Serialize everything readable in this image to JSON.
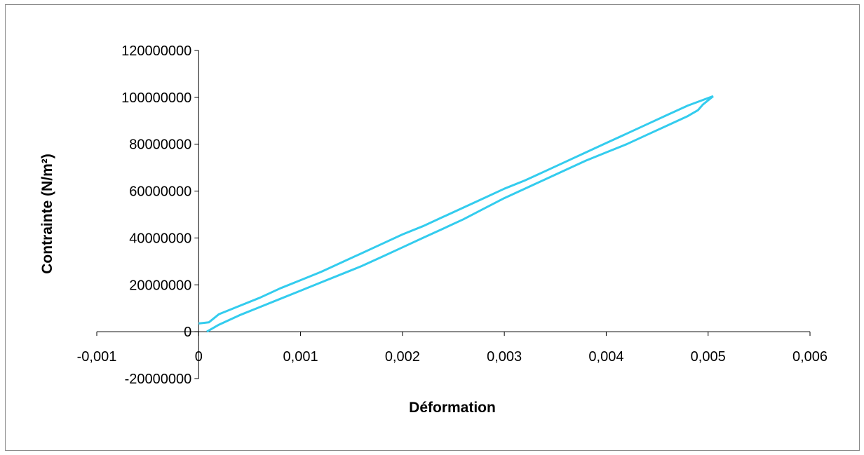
{
  "chart_data": {
    "type": "line",
    "title": "",
    "xlabel": "Déformation",
    "ylabel": "Contrainte (N/m²)",
    "xlim": [
      -0.001,
      0.006
    ],
    "ylim": [
      -20000000,
      120000000
    ],
    "x_ticks": [
      -0.001,
      0,
      0.001,
      0.002,
      0.003,
      0.004,
      0.005,
      0.006
    ],
    "x_tick_labels": [
      "-0,001",
      "0",
      "0,001",
      "0,002",
      "0,003",
      "0,004",
      "0,005",
      "0,006"
    ],
    "y_ticks": [
      -20000000,
      0,
      20000000,
      40000000,
      60000000,
      80000000,
      100000000,
      120000000
    ],
    "y_tick_labels": [
      "-20000000",
      "0",
      "20000000",
      "40000000",
      "60000000",
      "80000000",
      "100000000",
      "120000000"
    ],
    "grid": false,
    "legend": "none",
    "series_color": "#33CCEE",
    "series": [
      {
        "x": [
          8e-05,
          0.0002,
          0.0004,
          0.0006,
          0.0008,
          0.001,
          0.0012,
          0.0014,
          0.0016,
          0.0018,
          0.002,
          0.0022,
          0.0024,
          0.0026,
          0.0028,
          0.003,
          0.0032,
          0.0034,
          0.0036,
          0.0038,
          0.004,
          0.0042,
          0.0044,
          0.0046,
          0.0048,
          0.0049,
          0.00495,
          0.00505
        ],
        "y": [
          0,
          3000000,
          7000000,
          10500000,
          14000000,
          17500000,
          21000000,
          24500000,
          28000000,
          32000000,
          36000000,
          40000000,
          44000000,
          48000000,
          52500000,
          57000000,
          61000000,
          65000000,
          69000000,
          73000000,
          76500000,
          80000000,
          84000000,
          88000000,
          92000000,
          94500000,
          97000000,
          100500000
        ]
      },
      {
        "x": [
          0.00505,
          0.0048,
          0.0046,
          0.0044,
          0.0042,
          0.004,
          0.0038,
          0.0036,
          0.0034,
          0.0032,
          0.003,
          0.0028,
          0.0026,
          0.0024,
          0.0022,
          0.002,
          0.0018,
          0.0016,
          0.0014,
          0.0012,
          0.001,
          0.0008,
          0.0006,
          0.0004,
          0.0002,
          0.0001,
          0
        ],
        "y": [
          100500000,
          96500000,
          92500000,
          88500000,
          84500000,
          80500000,
          76500000,
          72500000,
          68500000,
          64500000,
          61000000,
          57000000,
          53000000,
          49000000,
          45000000,
          41500000,
          37500000,
          33500000,
          29500000,
          25500000,
          22000000,
          18500000,
          14500000,
          11000000,
          7500000,
          4000000,
          3500000
        ]
      }
    ]
  }
}
